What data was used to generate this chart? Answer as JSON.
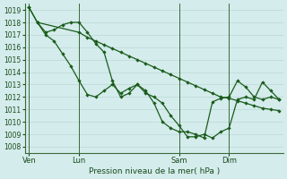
{
  "bg_color": "#d4ecec",
  "grid_color": "#c0dada",
  "line_color": "#1a5c1a",
  "ylabel_text": "Pression niveau de la mer( hPa )",
  "ylim": [
    1007.5,
    1019.5
  ],
  "yticks": [
    1008,
    1009,
    1010,
    1011,
    1012,
    1013,
    1014,
    1015,
    1016,
    1017,
    1018,
    1019
  ],
  "xtick_labels": [
    "Ven",
    "Lun",
    "Sam",
    "Dim"
  ],
  "xtick_positions": [
    0.5,
    6.5,
    18.5,
    24.5
  ],
  "vline_positions": [
    0.5,
    6.5,
    18.5,
    24.5
  ],
  "xmin": 0,
  "xmax": 31,
  "line1_x": [
    0.5,
    1.5,
    6.5,
    7.5,
    8.5,
    9.5,
    10.5,
    11.5,
    12.5,
    13.5,
    14.5,
    15.5,
    16.5,
    17.5,
    18.5,
    19.5,
    20.5,
    21.5,
    22.5,
    23.5,
    24.5,
    25.5,
    26.5,
    27.5,
    28.5,
    29.5,
    30.5
  ],
  "line1_y": [
    1019.2,
    1018.0,
    1017.2,
    1016.8,
    1016.5,
    1016.2,
    1015.9,
    1015.6,
    1015.3,
    1015.0,
    1014.7,
    1014.4,
    1014.1,
    1013.8,
    1013.5,
    1013.2,
    1012.9,
    1012.6,
    1012.3,
    1012.0,
    1011.9,
    1011.7,
    1011.5,
    1011.3,
    1011.1,
    1011.0,
    1010.9
  ],
  "line2_x": [
    0.5,
    1.5,
    2.5,
    3.5,
    4.5,
    5.5,
    6.5,
    7.5,
    8.5,
    9.5,
    10.5,
    11.5,
    12.5,
    13.5,
    14.5,
    15.5,
    16.5,
    17.5,
    18.5,
    19.5,
    20.5,
    21.5,
    22.5,
    23.5,
    24.5,
    25.5,
    26.5,
    27.5,
    28.5,
    29.5,
    30.5
  ],
  "line2_y": [
    1019.2,
    1018.0,
    1017.2,
    1017.4,
    1017.8,
    1018.0,
    1018.0,
    1017.2,
    1016.3,
    1015.6,
    1013.3,
    1012.0,
    1012.3,
    1013.0,
    1012.3,
    1012.0,
    1011.5,
    1010.5,
    1009.7,
    1008.8,
    1008.8,
    1009.0,
    1008.7,
    1009.2,
    1009.5,
    1011.8,
    1012.0,
    1011.8,
    1013.2,
    1012.5,
    1011.8
  ],
  "line3_x": [
    1.5,
    2.5,
    3.5,
    4.5,
    5.5,
    6.5,
    7.5,
    8.5,
    9.5,
    10.5,
    11.5,
    12.5,
    13.5,
    14.5,
    15.5,
    16.5,
    17.5,
    18.5,
    19.5,
    20.5,
    21.5,
    22.5,
    23.5,
    24.5,
    25.5,
    26.5,
    27.5,
    28.5,
    29.5,
    30.5
  ],
  "line3_y": [
    1018.0,
    1017.0,
    1016.5,
    1015.5,
    1014.5,
    1013.3,
    1012.2,
    1012.0,
    1012.5,
    1013.0,
    1012.3,
    1012.7,
    1013.0,
    1012.5,
    1011.5,
    1010.0,
    1009.5,
    1009.2,
    1009.2,
    1009.0,
    1008.7,
    1011.6,
    1011.9,
    1012.0,
    1013.3,
    1012.8,
    1012.0,
    1011.8,
    1012.0,
    1011.8
  ]
}
